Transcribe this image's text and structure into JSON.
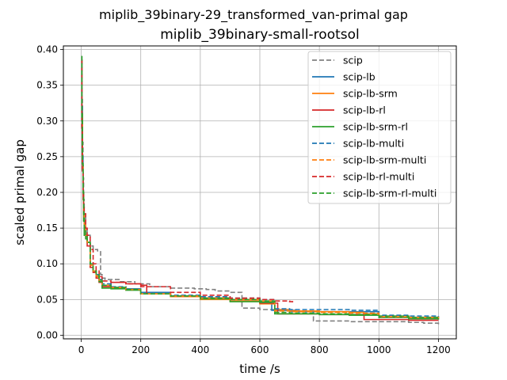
{
  "chart_data": {
    "type": "line",
    "title": "miplib_39binary-29_transformed_van-primal gap",
    "subtitle": "miplib_39binary-small-rootsol",
    "xlabel": "time /s",
    "ylabel": "scaled primal gap",
    "xlim": [
      -60,
      1260
    ],
    "ylim": [
      -0.005,
      0.405
    ],
    "xticks": [
      0,
      200,
      400,
      600,
      800,
      1000,
      1200
    ],
    "yticks": [
      0.0,
      0.05,
      0.1,
      0.15,
      0.2,
      0.25,
      0.3,
      0.35,
      0.4
    ],
    "ytick_labels": [
      "0.00",
      "0.05",
      "0.10",
      "0.15",
      "0.20",
      "0.25",
      "0.30",
      "0.35",
      "0.40"
    ],
    "grid": true,
    "legend_position": "top-right",
    "series": [
      {
        "name": "scip",
        "color": "#808080",
        "dash": "dashed",
        "x": [
          0,
          2,
          4,
          6,
          8,
          10,
          15,
          20,
          30,
          40,
          55,
          65,
          70,
          80,
          130,
          180,
          230,
          300,
          380,
          420,
          450,
          500,
          540,
          600,
          650,
          720,
          770,
          780,
          800,
          900,
          1000,
          1100,
          1150,
          1200
        ],
        "y": [
          0.39,
          0.33,
          0.27,
          0.22,
          0.19,
          0.17,
          0.15,
          0.14,
          0.125,
          0.12,
          0.118,
          0.085,
          0.08,
          0.078,
          0.075,
          0.072,
          0.068,
          0.066,
          0.065,
          0.064,
          0.062,
          0.06,
          0.038,
          0.036,
          0.035,
          0.034,
          0.033,
          0.02,
          0.02,
          0.019,
          0.019,
          0.018,
          0.017,
          0.015
        ]
      },
      {
        "name": "scip-lb",
        "color": "#1f77b4",
        "dash": "solid",
        "x": [
          0,
          2,
          4,
          6,
          8,
          10,
          15,
          20,
          30,
          40,
          50,
          60,
          70,
          100,
          150,
          200,
          300,
          400,
          500,
          600,
          640,
          700,
          800,
          900,
          990,
          1000,
          1100,
          1200
        ],
        "y": [
          0.385,
          0.32,
          0.25,
          0.2,
          0.17,
          0.155,
          0.14,
          0.13,
          0.1,
          0.09,
          0.085,
          0.078,
          0.07,
          0.067,
          0.065,
          0.06,
          0.055,
          0.052,
          0.05,
          0.046,
          0.035,
          0.033,
          0.033,
          0.033,
          0.033,
          0.025,
          0.025,
          0.024
        ]
      },
      {
        "name": "scip-lb-srm",
        "color": "#ff7f0e",
        "dash": "solid",
        "x": [
          0,
          2,
          4,
          6,
          8,
          10,
          15,
          20,
          30,
          40,
          50,
          60,
          70,
          100,
          150,
          200,
          300,
          400,
          500,
          600,
          650,
          700,
          800,
          900,
          950,
          1000,
          1100,
          1200
        ],
        "y": [
          0.385,
          0.31,
          0.24,
          0.2,
          0.17,
          0.155,
          0.14,
          0.13,
          0.095,
          0.088,
          0.082,
          0.075,
          0.068,
          0.066,
          0.064,
          0.058,
          0.054,
          0.05,
          0.048,
          0.044,
          0.036,
          0.034,
          0.033,
          0.032,
          0.03,
          0.026,
          0.025,
          0.022
        ]
      },
      {
        "name": "scip-lb-rl",
        "color": "#d62728",
        "dash": "solid",
        "x": [
          0,
          2,
          4,
          6,
          8,
          10,
          15,
          20,
          30,
          40,
          50,
          60,
          70,
          100,
          150,
          200,
          220,
          300,
          400,
          500,
          600,
          660,
          700,
          800,
          900,
          950,
          1000,
          1100,
          1200
        ],
        "y": [
          0.385,
          0.3,
          0.23,
          0.19,
          0.16,
          0.15,
          0.135,
          0.125,
          0.095,
          0.088,
          0.08,
          0.074,
          0.068,
          0.074,
          0.072,
          0.07,
          0.058,
          0.055,
          0.052,
          0.05,
          0.045,
          0.03,
          0.03,
          0.029,
          0.029,
          0.022,
          0.022,
          0.021,
          0.021
        ]
      },
      {
        "name": "scip-lb-srm-rl",
        "color": "#2ca02c",
        "dash": "solid",
        "x": [
          0,
          2,
          4,
          6,
          8,
          10,
          15,
          20,
          30,
          40,
          50,
          60,
          70,
          100,
          150,
          200,
          300,
          400,
          500,
          600,
          650,
          700,
          800,
          900,
          1000,
          1100,
          1200
        ],
        "y": [
          0.39,
          0.31,
          0.24,
          0.2,
          0.16,
          0.14,
          0.135,
          0.13,
          0.1,
          0.09,
          0.083,
          0.075,
          0.066,
          0.065,
          0.063,
          0.058,
          0.055,
          0.051,
          0.047,
          0.046,
          0.03,
          0.03,
          0.029,
          0.028,
          0.025,
          0.023,
          0.022
        ]
      },
      {
        "name": "scip-lb-multi",
        "color": "#1f77b4",
        "dash": "dashed",
        "x": [
          0,
          2,
          4,
          6,
          8,
          10,
          15,
          20,
          30,
          40,
          50,
          60,
          70,
          100,
          150,
          200,
          300,
          400,
          500,
          600,
          650,
          700,
          800,
          900,
          1000,
          1100,
          1200
        ],
        "y": [
          0.385,
          0.3,
          0.24,
          0.2,
          0.17,
          0.15,
          0.14,
          0.13,
          0.1,
          0.09,
          0.085,
          0.078,
          0.072,
          0.068,
          0.065,
          0.06,
          0.056,
          0.054,
          0.052,
          0.05,
          0.037,
          0.036,
          0.036,
          0.035,
          0.028,
          0.027,
          0.026
        ]
      },
      {
        "name": "scip-lb-srm-multi",
        "color": "#ff7f0e",
        "dash": "dashed",
        "x": [
          0,
          2,
          4,
          6,
          8,
          10,
          15,
          20,
          30,
          40,
          50,
          60,
          70,
          100,
          150,
          200,
          300,
          400,
          500,
          600,
          650,
          700,
          800,
          900,
          1000,
          1100,
          1200
        ],
        "y": [
          0.385,
          0.3,
          0.24,
          0.2,
          0.17,
          0.15,
          0.14,
          0.13,
          0.098,
          0.09,
          0.083,
          0.077,
          0.07,
          0.067,
          0.064,
          0.058,
          0.055,
          0.052,
          0.05,
          0.048,
          0.034,
          0.033,
          0.032,
          0.031,
          0.026,
          0.025,
          0.024
        ]
      },
      {
        "name": "scip-lb-rl-multi",
        "color": "#d62728",
        "dash": "dashed",
        "x": [
          0,
          2,
          4,
          6,
          8,
          10,
          15,
          20,
          30,
          40,
          50,
          60,
          70,
          100,
          150,
          200,
          300,
          400,
          500,
          600,
          650,
          700,
          710
        ],
        "y": [
          0.385,
          0.29,
          0.23,
          0.2,
          0.18,
          0.17,
          0.15,
          0.14,
          0.12,
          0.1,
          0.09,
          0.082,
          0.076,
          0.074,
          0.072,
          0.068,
          0.06,
          0.056,
          0.052,
          0.05,
          0.048,
          0.047,
          0.046
        ]
      },
      {
        "name": "scip-lb-srm-rl-multi",
        "color": "#2ca02c",
        "dash": "dashed",
        "x": [
          0,
          2,
          4,
          6,
          8,
          10,
          15,
          20,
          30,
          40,
          50,
          60,
          70,
          100,
          150,
          200,
          300,
          400,
          500,
          600,
          650,
          700,
          800,
          900,
          1000,
          1100,
          1200
        ],
        "y": [
          0.39,
          0.3,
          0.24,
          0.2,
          0.17,
          0.15,
          0.14,
          0.13,
          0.1,
          0.09,
          0.085,
          0.077,
          0.07,
          0.067,
          0.064,
          0.058,
          0.055,
          0.052,
          0.05,
          0.048,
          0.032,
          0.031,
          0.03,
          0.029,
          0.027,
          0.025,
          0.023
        ]
      }
    ]
  }
}
